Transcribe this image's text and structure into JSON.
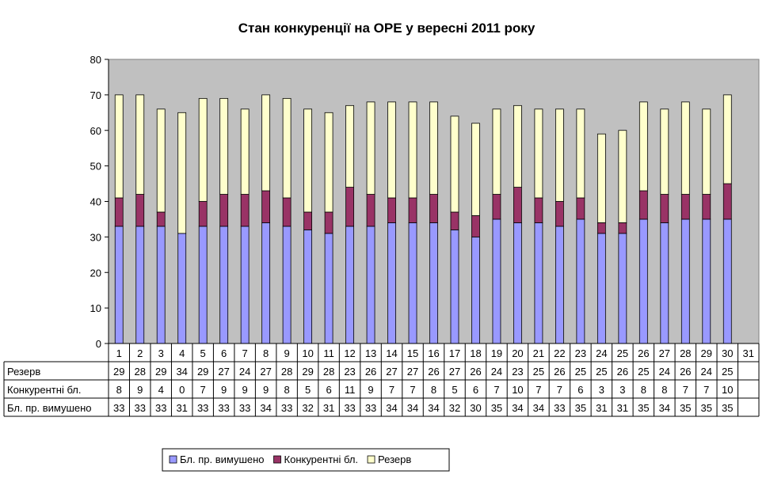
{
  "chart_data": {
    "type": "bar",
    "stacked": true,
    "title": "Стан конкуренції на ОРЕ  у вересні 2011 року",
    "xlabel": "",
    "ylabel": "",
    "ylim": [
      0,
      80
    ],
    "ytick_step": 10,
    "grid": false,
    "plot_background": "#c0c0c0",
    "legend_position": "bottom",
    "categories": [
      "1",
      "2",
      "3",
      "4",
      "5",
      "6",
      "7",
      "8",
      "9",
      "10",
      "11",
      "12",
      "13",
      "14",
      "15",
      "16",
      "17",
      "18",
      "19",
      "20",
      "21",
      "22",
      "23",
      "24",
      "25",
      "26",
      "27",
      "28",
      "29",
      "30",
      "31"
    ],
    "series": [
      {
        "name": "Бл. пр. вимушено",
        "color": "#9999ff",
        "values": [
          33,
          33,
          33,
          31,
          33,
          33,
          33,
          34,
          33,
          32,
          31,
          33,
          33,
          34,
          34,
          34,
          32,
          30,
          35,
          34,
          34,
          33,
          35,
          31,
          31,
          35,
          34,
          35,
          35,
          35,
          null
        ]
      },
      {
        "name": "Конкурентні бл.",
        "color": "#993366",
        "values": [
          8,
          9,
          4,
          0,
          7,
          9,
          9,
          9,
          8,
          5,
          6,
          11,
          9,
          7,
          7,
          8,
          5,
          6,
          7,
          10,
          7,
          7,
          6,
          3,
          3,
          8,
          8,
          7,
          7,
          10,
          null
        ]
      },
      {
        "name": "Резерв",
        "color": "#ffffcc",
        "values": [
          29,
          28,
          29,
          34,
          29,
          27,
          24,
          27,
          28,
          29,
          28,
          23,
          26,
          27,
          27,
          26,
          27,
          26,
          24,
          23,
          25,
          26,
          25,
          25,
          26,
          25,
          24,
          26,
          24,
          25,
          null
        ]
      }
    ],
    "table_row_order": [
      "Резерв",
      "Конкурентні бл.",
      "Бл. пр. вимушено"
    ]
  }
}
